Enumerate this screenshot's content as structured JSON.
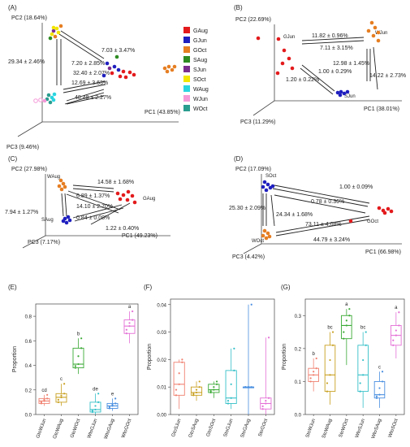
{
  "colors": {
    "GAug": "#e31a1c",
    "GJun": "#1f1fbf",
    "GOct": "#e67e22",
    "SAug": "#2e8b22",
    "SJun": "#7b2d8e",
    "SOct": "#f2e600",
    "WAug": "#2ad5e0",
    "WJun": "#f59ad8",
    "WOct": "#2a9d8f"
  },
  "legend": [
    {
      "name": "GAug",
      "color": "#e31a1c"
    },
    {
      "name": "GJun",
      "color": "#1f1fbf"
    },
    {
      "name": "GOct",
      "color": "#e67e22"
    },
    {
      "name": "SAug",
      "color": "#2e8b22"
    },
    {
      "name": "SJun",
      "color": "#7b2d8e"
    },
    {
      "name": "SOct",
      "color": "#f2e600"
    },
    {
      "name": "WAug",
      "color": "#2ad5e0"
    },
    {
      "name": "WJun",
      "color": "#f59ad8"
    },
    {
      "name": "WOct",
      "color": "#2a9d8f"
    }
  ],
  "chart_data": [
    {
      "panel": "(A)",
      "type": "scatter",
      "axes": {
        "pc1": "PC1 (43.85%)",
        "pc2": "PC2 (18.64%)",
        "pc3": "PC3 (9.46%)"
      },
      "distances": [
        "7.03 ± 3.47%",
        "7.20 ± 2.85%",
        "32.40 ± 2.07%",
        "29.34 ± 2.46%",
        "12.69 ± 3.63%",
        "48.48 ± 2.27%"
      ]
    },
    {
      "panel": "(B)",
      "type": "scatter",
      "axes": {
        "pc1": "PC1 (38.01%)",
        "pc2": "PC2 (22.69%)",
        "pc3": "PC3 (11.29%)"
      },
      "labels": [
        "GJun",
        "WJun",
        "SJun"
      ],
      "distances": [
        "11.82 ± 0.96%",
        "7.11 ± 3.15%",
        "12.98 ± 1.45%",
        "1.00 ± 0.29%",
        "1.20 ± 0.22%",
        "14.22 ± 2.73%"
      ]
    },
    {
      "panel": "(C)",
      "type": "scatter",
      "axes": {
        "pc1": "PC1 (49.23%)",
        "pc2": "PC2 (27.98%)",
        "pc3": "PC3 (7.17%)"
      },
      "labels": [
        "WAug",
        "GAug",
        "SAug"
      ],
      "distances": [
        "14.58 ± 1.68%",
        "6.89 ± 1.37%",
        "14.10 ± 2.70%",
        "7.94 ± 1.27%",
        "0.84 ± 0.08%",
        "1.22 ± 0.40%"
      ]
    },
    {
      "panel": "(D)",
      "type": "scatter",
      "axes": {
        "pc1": "PC1 (66.98%)",
        "pc2": "PC2 (17.09%)",
        "pc3": "PC3 (4.42%)"
      },
      "labels": [
        "SOct",
        "GOct",
        "WOct"
      ],
      "distances": [
        "1.00 ± 0.09%",
        "0.78 ± 0.36%",
        "25.30 ± 2.09%",
        "24.34 ± 1.68%",
        "73.11 ± 4.08%",
        "44.79 ± 3.24%"
      ]
    },
    {
      "panel": "(E)",
      "type": "box",
      "ylabel": "Proportion",
      "ylim": [
        0,
        0.9
      ],
      "yticks": [
        "0.0",
        "0.2",
        "0.4",
        "0.6",
        "0.8"
      ],
      "categories": [
        "GtoWJun",
        "GtoWAug",
        "GtoWOct",
        "WtoGJun",
        "WtoGAug",
        "WtoGOct"
      ],
      "colors": [
        "#f08070",
        "#c8a020",
        "#3aaa35",
        "#35c0c8",
        "#4a8fe0",
        "#e46fd6"
      ],
      "medians": [
        0.11,
        0.14,
        0.41,
        0.04,
        0.07,
        0.72
      ],
      "q1": [
        0.09,
        0.1,
        0.38,
        0.02,
        0.05,
        0.66
      ],
      "q3": [
        0.13,
        0.17,
        0.54,
        0.1,
        0.09,
        0.77
      ],
      "whisker_low": [
        0.07,
        0.07,
        0.33,
        0.0,
        0.03,
        0.58
      ],
      "whisker_high": [
        0.16,
        0.25,
        0.62,
        0.17,
        0.13,
        0.84
      ],
      "letters": [
        "cd",
        "c",
        "b",
        "de",
        "e",
        "a"
      ]
    },
    {
      "panel": "(F)",
      "type": "box",
      "ylabel": "Proportion",
      "ylim": [
        0,
        0.042
      ],
      "yticks": [
        "0.00",
        "0.01",
        "0.02",
        "0.03",
        "0.04"
      ],
      "categories": [
        "GtoSJun",
        "GtoSAug",
        "GtoSOct",
        "StoGJun",
        "StoGAug",
        "StoGOct"
      ],
      "colors": [
        "#f08070",
        "#c8a020",
        "#3aaa35",
        "#35c0c8",
        "#4a8fe0",
        "#e46fd6"
      ],
      "medians": [
        0.011,
        0.008,
        0.009,
        0.006,
        0.01,
        0.004
      ],
      "q1": [
        0.007,
        0.007,
        0.008,
        0.004,
        0.01,
        0.002
      ],
      "q3": [
        0.019,
        0.01,
        0.011,
        0.016,
        0.01,
        0.006
      ],
      "whisker_low": [
        0.002,
        0.005,
        0.006,
        0.002,
        0.0,
        0.0
      ],
      "whisker_high": [
        0.02,
        0.012,
        0.012,
        0.024,
        0.04,
        0.028
      ],
      "letters": []
    },
    {
      "panel": "(G)",
      "type": "box",
      "ylabel": "Proportion",
      "ylim": [
        0,
        0.35
      ],
      "yticks": [
        "0.0",
        "0.1",
        "0.2",
        "0.3"
      ],
      "categories": [
        "StoWJun",
        "StoWAug",
        "StoWOct",
        "WtoSJun",
        "WtoSAug",
        "WtoSOct"
      ],
      "colors": [
        "#f08070",
        "#c8a020",
        "#3aaa35",
        "#35c0c8",
        "#4a8fe0",
        "#e46fd6"
      ],
      "medians": [
        0.12,
        0.12,
        0.27,
        0.12,
        0.06,
        0.24
      ],
      "q1": [
        0.1,
        0.07,
        0.23,
        0.07,
        0.05,
        0.21
      ],
      "q3": [
        0.14,
        0.21,
        0.3,
        0.21,
        0.1,
        0.27
      ],
      "whisker_low": [
        0.07,
        0.03,
        0.15,
        0.02,
        0.02,
        0.17
      ],
      "whisker_high": [
        0.17,
        0.25,
        0.32,
        0.25,
        0.13,
        0.31
      ],
      "letters": [
        "b",
        "bc",
        "a",
        "bc",
        "c",
        "a"
      ]
    }
  ]
}
